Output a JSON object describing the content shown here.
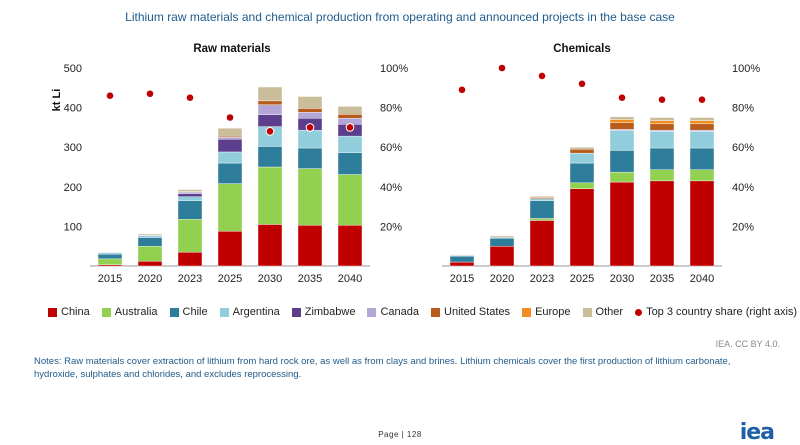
{
  "title": "Lithium raw materials and chemical production from operating and announced projects in the base case",
  "colors": {
    "China": "#c00000",
    "Australia": "#92d050",
    "Chile": "#2e7d9a",
    "Argentina": "#92cddc",
    "Zimbabwe": "#5b3f8c",
    "Canada": "#b4a7d6",
    "United States": "#b85c1c",
    "Europe": "#f08c21",
    "Other": "#c9bd9a",
    "Top 3 country share (right axis)": "#c00000"
  },
  "legend": [
    {
      "label": "China",
      "type": "square"
    },
    {
      "label": "Australia",
      "type": "square"
    },
    {
      "label": "Chile",
      "type": "square"
    },
    {
      "label": "Argentina",
      "type": "square"
    },
    {
      "label": "Zimbabwe",
      "type": "square"
    },
    {
      "label": "Canada",
      "type": "square"
    },
    {
      "label": "United States",
      "type": "square"
    },
    {
      "label": "Europe",
      "type": "square"
    },
    {
      "label": "Other",
      "type": "square"
    },
    {
      "label": "Top 3 country share (right axis)",
      "type": "dot"
    }
  ],
  "chart_data": [
    {
      "type": "bar",
      "stacked": true,
      "title": "Raw materials",
      "ylabel": "kt Li",
      "ylim": [
        0,
        500
      ],
      "yticks": [
        100,
        200,
        300,
        400,
        500
      ],
      "y2lim": [
        0,
        1
      ],
      "y2ticks": [
        "20%",
        "40%",
        "60%",
        "80%",
        "100%"
      ],
      "categories": [
        "2015",
        "2020",
        "2023",
        "2025",
        "2030",
        "2035",
        "2040"
      ],
      "series": [
        {
          "name": "China",
          "values": [
            3,
            12,
            35,
            88,
            105,
            103,
            103
          ]
        },
        {
          "name": "Australia",
          "values": [
            15,
            38,
            83,
            120,
            145,
            143,
            128
          ]
        },
        {
          "name": "Chile",
          "values": [
            12,
            22,
            47,
            52,
            52,
            52,
            55
          ]
        },
        {
          "name": "Argentina",
          "values": [
            4,
            5,
            10,
            28,
            50,
            45,
            42
          ]
        },
        {
          "name": "Zimbabwe",
          "values": [
            0,
            1,
            8,
            32,
            30,
            30,
            30
          ]
        },
        {
          "name": "Canada",
          "values": [
            0,
            0,
            4,
            5,
            25,
            15,
            15
          ]
        },
        {
          "name": "United States",
          "values": [
            0,
            0,
            1,
            3,
            10,
            10,
            10
          ]
        },
        {
          "name": "Europe",
          "values": [
            0,
            0,
            0,
            0,
            0,
            0,
            0
          ]
        },
        {
          "name": "Other",
          "values": [
            1,
            3,
            5,
            20,
            35,
            30,
            20
          ]
        },
        {
          "name": "Top 3 country share (right axis)",
          "axis": "right",
          "values": [
            0.86,
            0.87,
            0.85,
            0.75,
            0.68,
            0.7,
            0.7
          ]
        }
      ]
    },
    {
      "type": "bar",
      "stacked": true,
      "title": "Chemicals",
      "ylabel": "",
      "ylim": [
        0,
        500
      ],
      "y2lim": [
        0,
        1
      ],
      "y2ticks": [
        "20%",
        "40%",
        "60%",
        "80%",
        "100%"
      ],
      "categories": [
        "2015",
        "2020",
        "2023",
        "2025",
        "2030",
        "2035",
        "2040"
      ],
      "series": [
        {
          "name": "China",
          "values": [
            10,
            50,
            115,
            195,
            212,
            215,
            215
          ]
        },
        {
          "name": "Australia",
          "values": [
            0,
            0,
            5,
            15,
            25,
            28,
            28
          ]
        },
        {
          "name": "Chile",
          "values": [
            15,
            20,
            45,
            50,
            55,
            55,
            55
          ]
        },
        {
          "name": "Argentina",
          "values": [
            2,
            3,
            5,
            25,
            50,
            42,
            42
          ]
        },
        {
          "name": "Zimbabwe",
          "values": [
            0,
            0,
            0,
            0,
            0,
            0,
            0
          ]
        },
        {
          "name": "Canada",
          "values": [
            0,
            0,
            0,
            0,
            3,
            3,
            3
          ]
        },
        {
          "name": "United States",
          "values": [
            1,
            2,
            3,
            10,
            17,
            16,
            16
          ]
        },
        {
          "name": "Europe",
          "values": [
            0,
            0,
            0,
            0,
            8,
            8,
            8
          ]
        },
        {
          "name": "Other",
          "values": [
            1,
            1,
            3,
            5,
            7,
            8,
            8
          ]
        },
        {
          "name": "Top 3 country share (right axis)",
          "axis": "right",
          "values": [
            0.89,
            1.0,
            0.96,
            0.92,
            0.85,
            0.84,
            0.84
          ]
        }
      ]
    }
  ],
  "credit": "IEA. CC BY 4.0.",
  "notes": "Notes: Raw materials cover extraction of lithium from hard rock ore, as well as from clays and brines. Lithium chemicals cover the first production of lithium carbonate, hydroxide, sulphates and chlorides, and excludes reprocessing.",
  "page_label": "Page | 128",
  "logo": "iea"
}
